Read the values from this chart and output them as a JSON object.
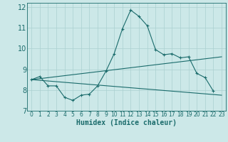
{
  "xlabel": "Humidex (Indice chaleur)",
  "xlim": [
    -0.5,
    23.5
  ],
  "ylim": [
    7,
    12.2
  ],
  "yticks": [
    7,
    8,
    9,
    10,
    11,
    12
  ],
  "xticks": [
    0,
    1,
    2,
    3,
    4,
    5,
    6,
    7,
    8,
    9,
    10,
    11,
    12,
    13,
    14,
    15,
    16,
    17,
    18,
    19,
    20,
    21,
    22,
    23
  ],
  "bg_color": "#cce8e8",
  "line_color": "#1a6b6b",
  "grid_color": "#aad0d0",
  "line1_x": [
    0,
    1,
    2,
    3,
    4,
    5,
    6,
    7,
    8,
    9,
    10,
    11,
    12,
    13,
    14,
    15,
    16,
    17,
    18,
    19,
    20,
    21,
    22
  ],
  "line1_y": [
    8.5,
    8.65,
    8.2,
    8.2,
    7.65,
    7.5,
    7.75,
    7.8,
    8.2,
    8.9,
    9.75,
    10.95,
    11.85,
    11.55,
    11.1,
    9.95,
    9.7,
    9.75,
    9.55,
    9.6,
    8.8,
    8.6,
    7.95
  ],
  "line2_x": [
    0,
    23
  ],
  "line2_y": [
    8.5,
    7.75
  ],
  "line3_x": [
    0,
    23
  ],
  "line3_y": [
    8.5,
    9.6
  ],
  "marker": "+"
}
